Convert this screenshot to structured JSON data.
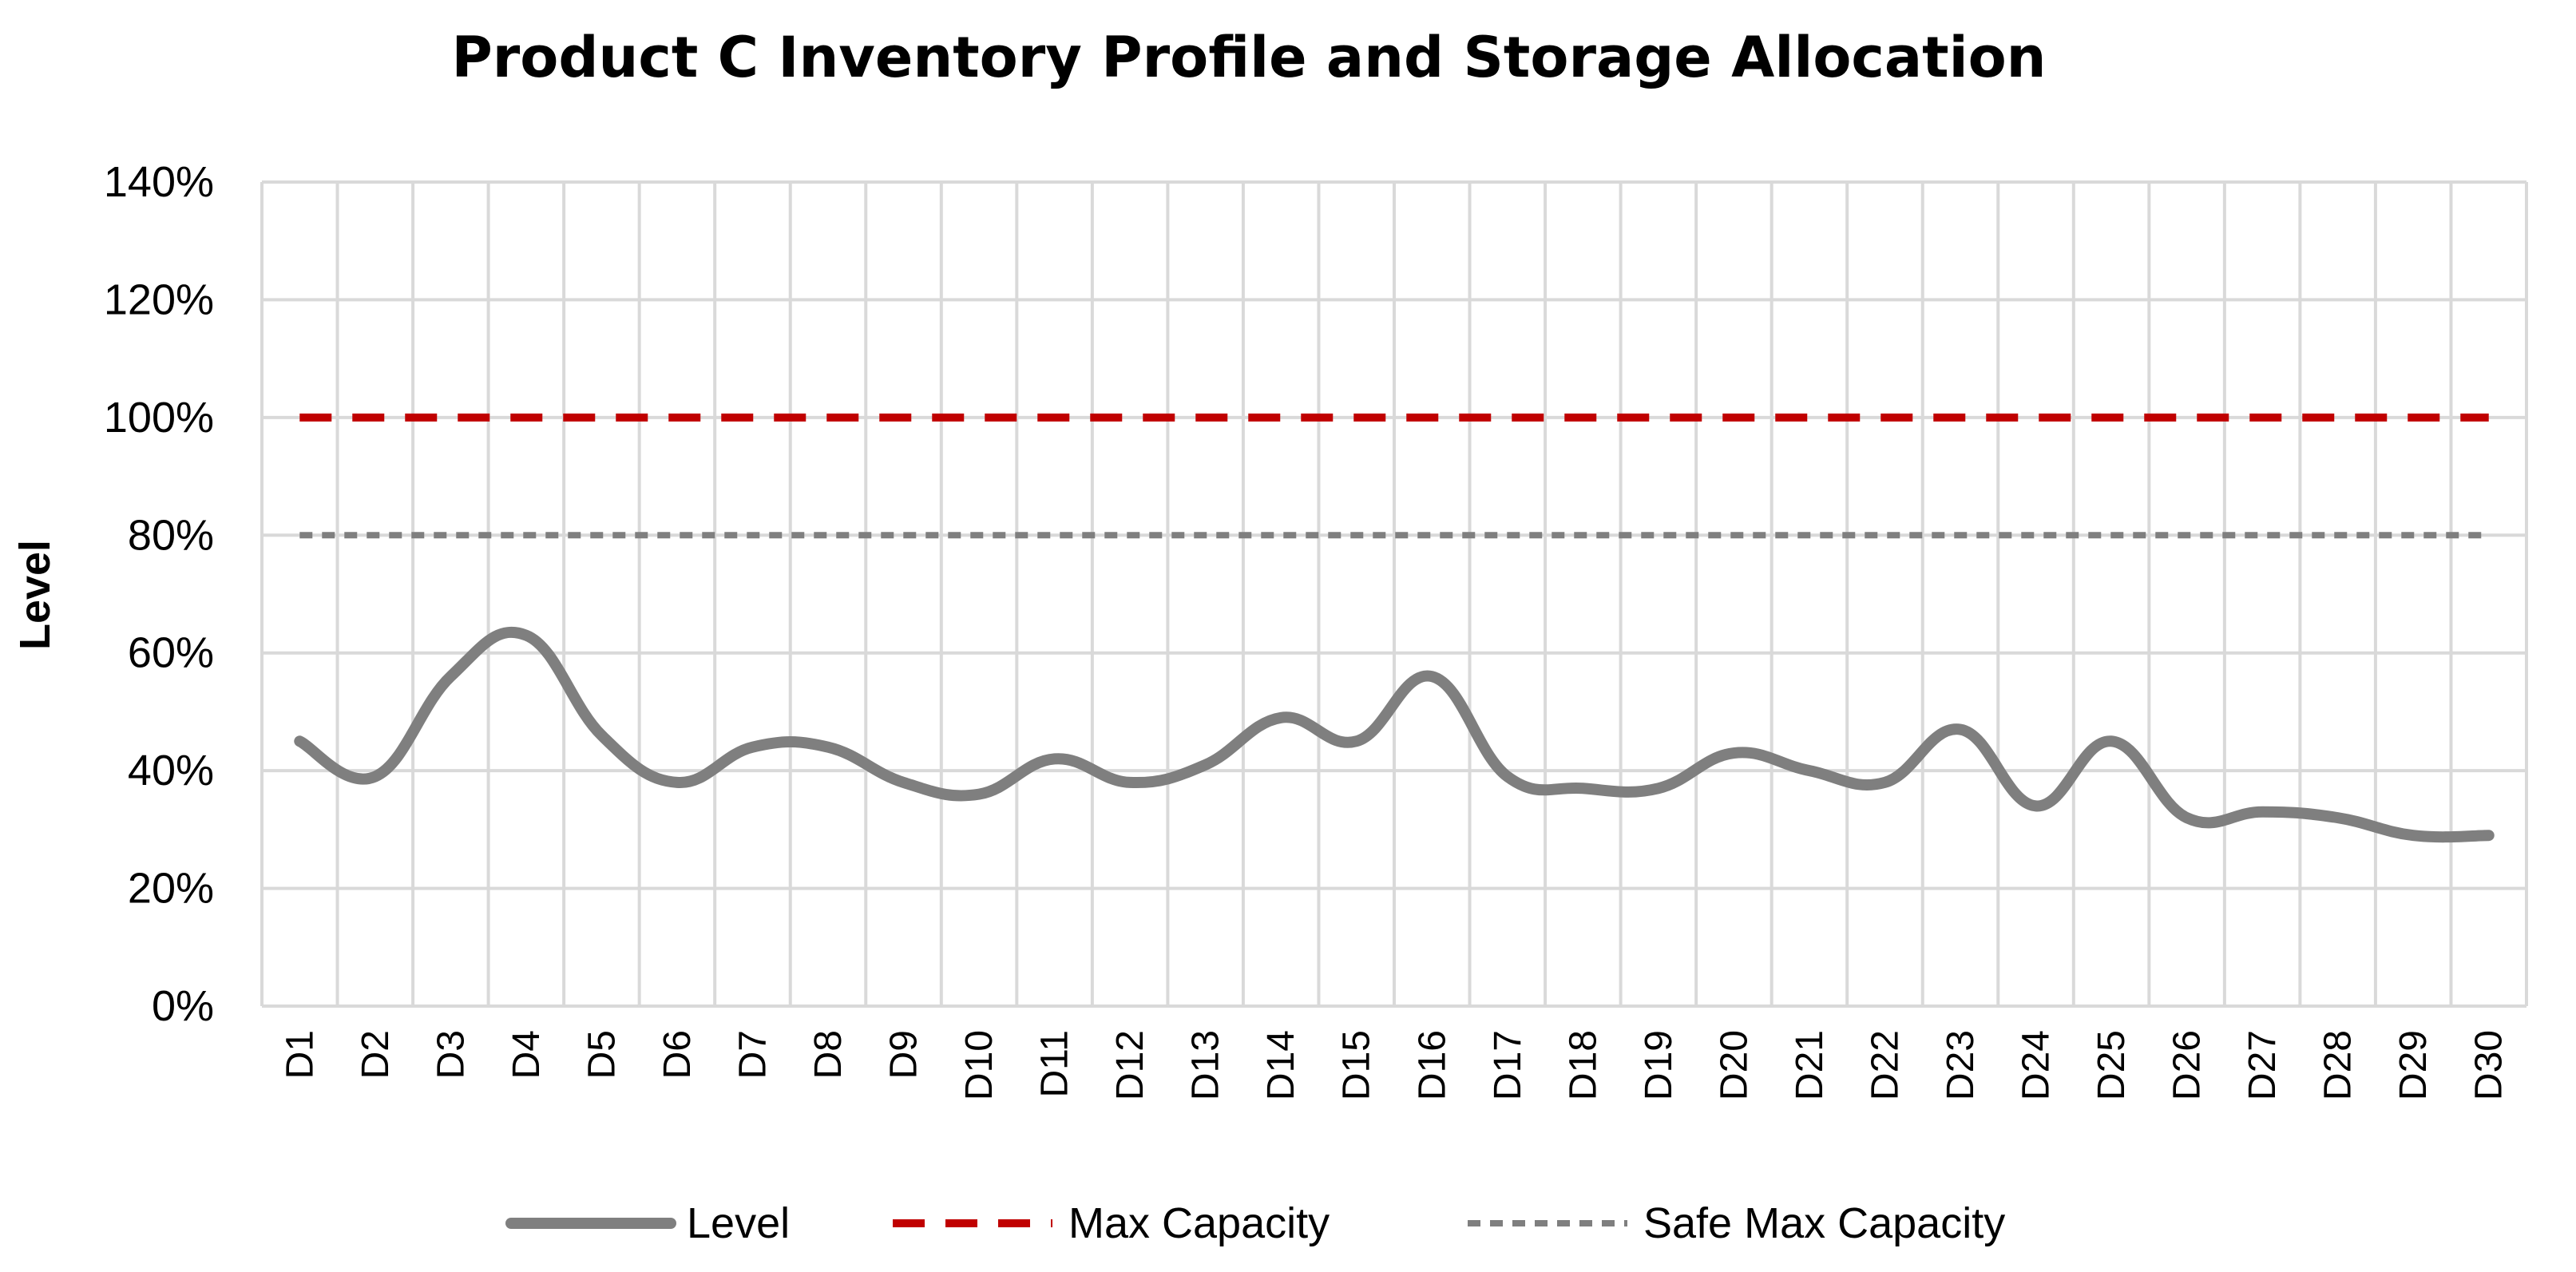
{
  "chart_data": {
    "type": "line",
    "title": "Product C Inventory Profile and Storage Allocation",
    "xlabel": "",
    "ylabel": "Level",
    "ylim": [
      0,
      140
    ],
    "yticks": [
      "0%",
      "20%",
      "40%",
      "60%",
      "80%",
      "100%",
      "120%",
      "140%"
    ],
    "grid": true,
    "legend_position": "bottom",
    "categories": [
      "D1",
      "D2",
      "D3",
      "D4",
      "D5",
      "D6",
      "D7",
      "D8",
      "D9",
      "D10",
      "D11",
      "D12",
      "D13",
      "D14",
      "D15",
      "D16",
      "D17",
      "D18",
      "D19",
      "D20",
      "D21",
      "D22",
      "D23",
      "D24",
      "D25",
      "D26",
      "D27",
      "D28",
      "D29",
      "D30"
    ],
    "series": [
      {
        "name": "Level",
        "color": "#7f7f7f",
        "style": "solid",
        "smooth": true,
        "values": [
          45,
          39,
          56,
          63,
          46,
          38,
          44,
          44,
          38,
          36,
          42,
          38,
          41,
          49,
          45,
          56,
          39,
          37,
          37,
          43,
          40,
          38,
          47,
          34,
          45,
          32,
          33,
          32,
          29,
          29
        ]
      },
      {
        "name": "Max Capacity",
        "color": "#c00000",
        "style": "dashed",
        "values": [
          100,
          100,
          100,
          100,
          100,
          100,
          100,
          100,
          100,
          100,
          100,
          100,
          100,
          100,
          100,
          100,
          100,
          100,
          100,
          100,
          100,
          100,
          100,
          100,
          100,
          100,
          100,
          100,
          100,
          100
        ]
      },
      {
        "name": "Safe Max Capacity",
        "color": "#7f7f7f",
        "style": "dashed-fine",
        "values": [
          80,
          80,
          80,
          80,
          80,
          80,
          80,
          80,
          80,
          80,
          80,
          80,
          80,
          80,
          80,
          80,
          80,
          80,
          80,
          80,
          80,
          80,
          80,
          80,
          80,
          80,
          80,
          80,
          80,
          80
        ]
      }
    ]
  }
}
